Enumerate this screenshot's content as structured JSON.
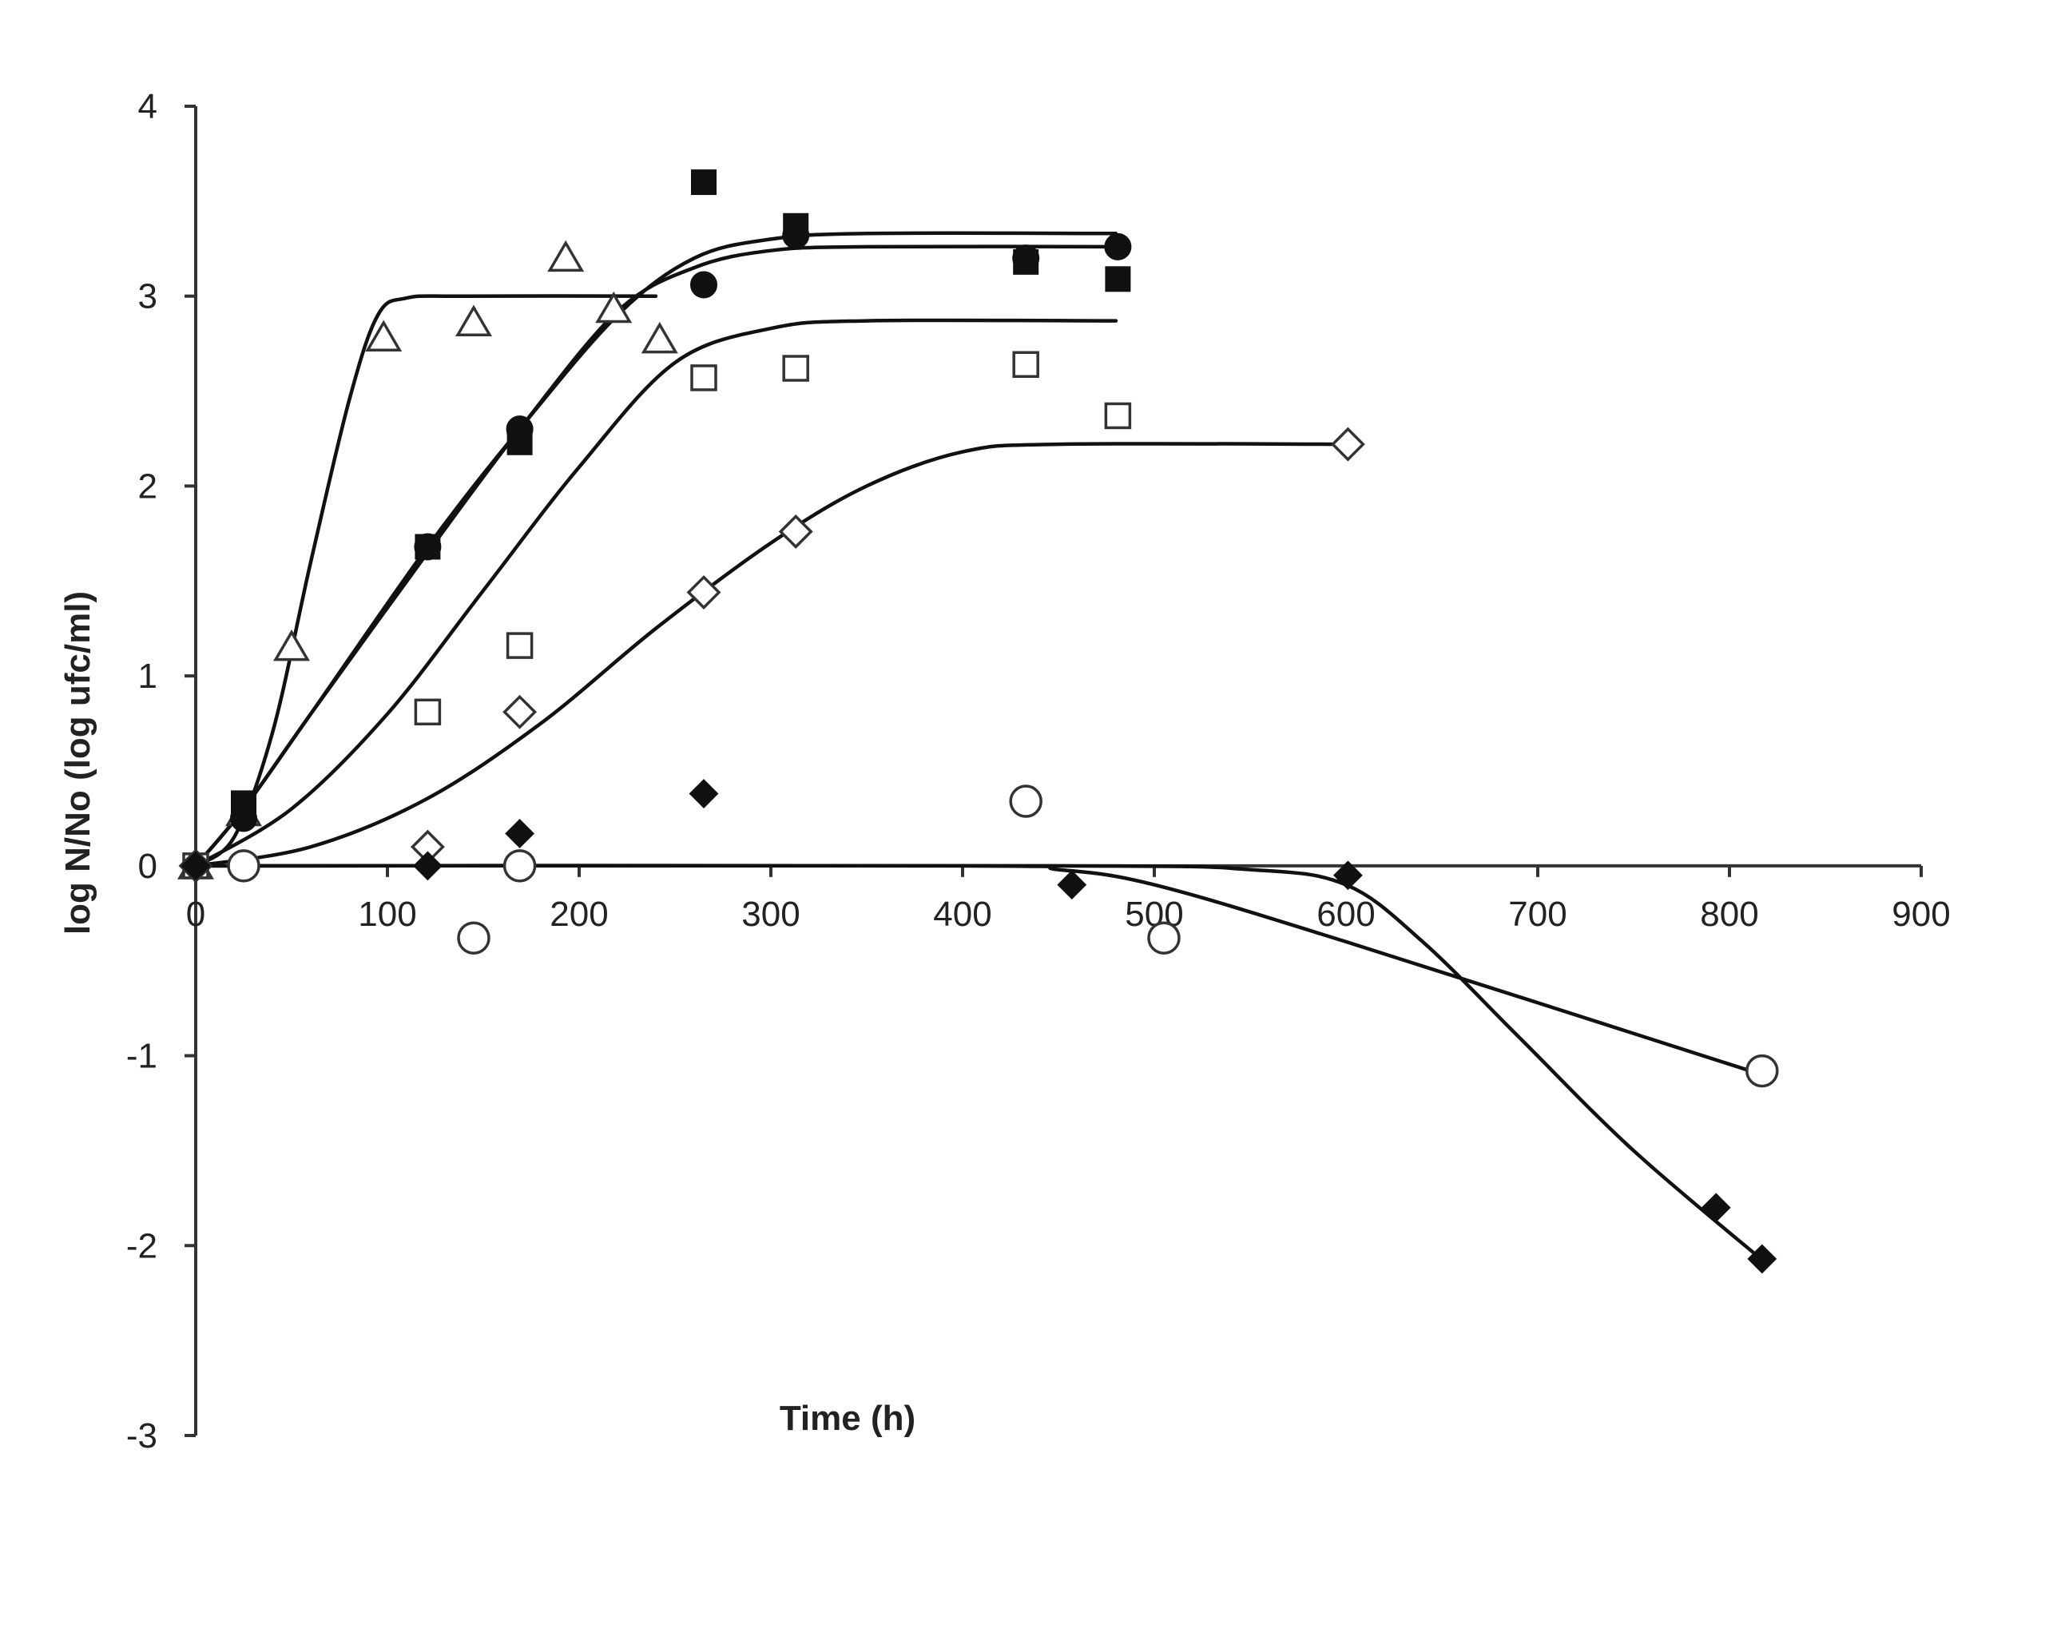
{
  "chart_data": {
    "type": "scatter",
    "xlabel": "Time (h)",
    "ylabel": "log N/No (log ufc/ml)",
    "xlim": [
      0,
      900
    ],
    "ylim": [
      -3,
      4
    ],
    "x_ticks": [
      "0",
      "100",
      "200",
      "300",
      "400",
      "500",
      "600",
      "700",
      "800",
      "900"
    ],
    "y_ticks": [
      "4",
      "3",
      "2",
      "1",
      "0",
      "-1",
      "-2",
      "-3"
    ],
    "grid": false,
    "legend": "none",
    "series": [
      {
        "marker": "open-triangle",
        "color": "#333333",
        "points": [
          [
            0,
            0
          ],
          [
            25,
            0.28
          ],
          [
            50,
            1.15
          ],
          [
            98,
            2.78
          ],
          [
            145,
            2.86
          ],
          [
            193,
            3.2
          ],
          [
            218,
            2.93
          ],
          [
            242,
            2.77
          ]
        ],
        "fit": [
          [
            0,
            0
          ],
          [
            20,
            0.15
          ],
          [
            40,
            0.7
          ],
          [
            60,
            1.6
          ],
          [
            80,
            2.45
          ],
          [
            95,
            2.9
          ],
          [
            110,
            2.99
          ],
          [
            140,
            3.0
          ],
          [
            240,
            3.0
          ]
        ]
      },
      {
        "marker": "filled-square",
        "color": "#111111",
        "points": [
          [
            0,
            0
          ],
          [
            25,
            0.33
          ],
          [
            121,
            1.68
          ],
          [
            169,
            2.23
          ],
          [
            265,
            3.6
          ],
          [
            313,
            3.37
          ],
          [
            433,
            3.18
          ],
          [
            481,
            3.09
          ]
        ],
        "fit": [
          [
            0,
            0
          ],
          [
            25,
            0.3
          ],
          [
            60,
            0.8
          ],
          [
            121,
            1.68
          ],
          [
            169,
            2.3
          ],
          [
            220,
            2.9
          ],
          [
            260,
            3.2
          ],
          [
            300,
            3.3
          ],
          [
            350,
            3.33
          ],
          [
            480,
            3.33
          ]
        ]
      },
      {
        "marker": "filled-circle",
        "color": "#111111",
        "points": [
          [
            0,
            0
          ],
          [
            25,
            0.25
          ],
          [
            121,
            1.68
          ],
          [
            169,
            2.3
          ],
          [
            265,
            3.06
          ],
          [
            313,
            3.32
          ],
          [
            433,
            3.2
          ],
          [
            481,
            3.26
          ]
        ],
        "fit": [
          [
            0,
            0
          ],
          [
            25,
            0.3
          ],
          [
            60,
            0.8
          ],
          [
            121,
            1.65
          ],
          [
            169,
            2.3
          ],
          [
            220,
            2.92
          ],
          [
            260,
            3.15
          ],
          [
            300,
            3.24
          ],
          [
            350,
            3.26
          ],
          [
            480,
            3.26
          ]
        ]
      },
      {
        "marker": "open-square",
        "color": "#333333",
        "points": [
          [
            0,
            0
          ],
          [
            121,
            0.81
          ],
          [
            169,
            1.16
          ],
          [
            265,
            2.57
          ],
          [
            313,
            2.62
          ],
          [
            433,
            2.64
          ],
          [
            481,
            2.37
          ]
        ],
        "fit": [
          [
            0,
            0
          ],
          [
            50,
            0.3
          ],
          [
            100,
            0.8
          ],
          [
            150,
            1.45
          ],
          [
            200,
            2.1
          ],
          [
            250,
            2.65
          ],
          [
            300,
            2.83
          ],
          [
            350,
            2.87
          ],
          [
            480,
            2.87
          ]
        ]
      },
      {
        "marker": "open-diamond",
        "color": "#333333",
        "points": [
          [
            0,
            0
          ],
          [
            121,
            0.1
          ],
          [
            169,
            0.81
          ],
          [
            265,
            1.44
          ],
          [
            313,
            1.76
          ],
          [
            601,
            2.22
          ]
        ],
        "fit": [
          [
            0,
            0
          ],
          [
            60,
            0.1
          ],
          [
            120,
            0.35
          ],
          [
            180,
            0.75
          ],
          [
            240,
            1.25
          ],
          [
            300,
            1.7
          ],
          [
            350,
            2.0
          ],
          [
            400,
            2.18
          ],
          [
            450,
            2.22
          ],
          [
            600,
            2.22
          ]
        ]
      },
      {
        "marker": "filled-diamond",
        "color": "#111111",
        "points": [
          [
            0,
            0
          ],
          [
            121,
            0.0
          ],
          [
            169,
            0.17
          ],
          [
            265,
            0.38
          ],
          [
            457,
            -0.1
          ],
          [
            601,
            -0.05
          ],
          [
            793,
            -1.8
          ],
          [
            817,
            -2.07
          ]
        ],
        "fit": [
          [
            0,
            0
          ],
          [
            450,
            0.0
          ],
          [
            550,
            -0.02
          ],
          [
            600,
            -0.1
          ],
          [
            640,
            -0.4
          ],
          [
            690,
            -0.9
          ],
          [
            750,
            -1.5
          ],
          [
            820,
            -2.1
          ]
        ]
      },
      {
        "marker": "open-circle",
        "color": "#333333",
        "points": [
          [
            25,
            0.0
          ],
          [
            145,
            -0.38
          ],
          [
            169,
            0.0
          ],
          [
            433,
            0.34
          ],
          [
            505,
            -0.38
          ],
          [
            817,
            -1.08
          ]
        ],
        "fit": [
          [
            0,
            0
          ],
          [
            400,
            0.0
          ],
          [
            450,
            -0.02
          ],
          [
            500,
            -0.1
          ],
          [
            600,
            -0.4
          ],
          [
            817,
            -1.1
          ]
        ]
      }
    ]
  }
}
